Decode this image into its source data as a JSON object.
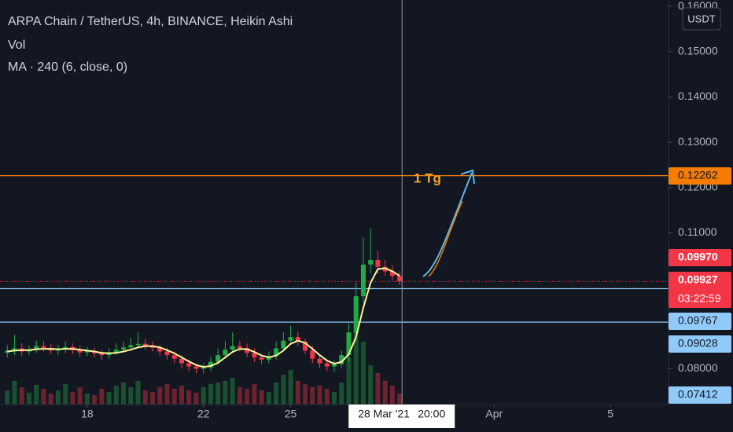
{
  "chart_data": {
    "type": "candlestick",
    "title": "ARPA Chain / TetherUS, 4h, BINANCE, Heikin Ashi",
    "volume_label": "Vol",
    "currency": "USDT",
    "annotation": "1 Tg",
    "x": [
      15.25,
      15.5,
      15.75,
      16,
      16.25,
      16.5,
      16.75,
      17,
      17.25,
      17.5,
      17.75,
      18,
      18.25,
      18.5,
      18.75,
      19,
      19.25,
      19.5,
      19.75,
      20,
      20.25,
      20.5,
      20.75,
      21,
      21.25,
      21.5,
      21.75,
      22,
      22.25,
      22.5,
      22.75,
      23,
      23.25,
      23.5,
      23.75,
      24,
      24.25,
      24.5,
      24.75,
      25,
      25.25,
      25.5,
      25.75,
      26,
      26.25,
      26.5,
      26.75,
      27,
      27.25,
      27.5,
      27.75,
      28,
      28.25,
      28.5,
      28.75
    ],
    "open": [
      0.0835,
      0.084,
      0.0845,
      0.0838,
      0.0842,
      0.085,
      0.0846,
      0.084,
      0.0843,
      0.0848,
      0.0841,
      0.0836,
      0.0839,
      0.0834,
      0.083,
      0.0836,
      0.0842,
      0.0847,
      0.0852,
      0.0855,
      0.0851,
      0.0846,
      0.0838,
      0.083,
      0.0822,
      0.0812,
      0.0805,
      0.08,
      0.0803,
      0.0815,
      0.083,
      0.0842,
      0.085,
      0.0846,
      0.0835,
      0.0825,
      0.082,
      0.0828,
      0.0845,
      0.0862,
      0.087,
      0.086,
      0.084,
      0.0822,
      0.0812,
      0.0805,
      0.081,
      0.083,
      0.088,
      0.096,
      0.103,
      0.104,
      0.1025,
      0.1015,
      0.1005
    ],
    "high": [
      0.0852,
      0.0875,
      0.0856,
      0.0851,
      0.0862,
      0.086,
      0.0855,
      0.0852,
      0.086,
      0.0856,
      0.085,
      0.0848,
      0.0846,
      0.0842,
      0.0845,
      0.0856,
      0.086,
      0.0868,
      0.088,
      0.0866,
      0.086,
      0.0852,
      0.0846,
      0.0838,
      0.083,
      0.082,
      0.0812,
      0.0812,
      0.0826,
      0.0845,
      0.0862,
      0.088,
      0.0862,
      0.0856,
      0.0845,
      0.0832,
      0.0838,
      0.086,
      0.088,
      0.0895,
      0.0882,
      0.0866,
      0.085,
      0.083,
      0.082,
      0.0818,
      0.084,
      0.09,
      0.099,
      0.109,
      0.111,
      0.106,
      0.104,
      0.1028,
      0.1015
    ],
    "low": [
      0.0825,
      0.083,
      0.0828,
      0.083,
      0.0835,
      0.0838,
      0.0832,
      0.083,
      0.0835,
      0.0832,
      0.0826,
      0.0828,
      0.0825,
      0.082,
      0.0822,
      0.083,
      0.0836,
      0.084,
      0.0845,
      0.0842,
      0.0838,
      0.0828,
      0.082,
      0.0812,
      0.08,
      0.0795,
      0.079,
      0.079,
      0.0795,
      0.0808,
      0.0822,
      0.0835,
      0.0838,
      0.0826,
      0.0815,
      0.081,
      0.0812,
      0.082,
      0.0838,
      0.0855,
      0.085,
      0.0832,
      0.0812,
      0.0802,
      0.0795,
      0.0792,
      0.08,
      0.0815,
      0.086,
      0.0945,
      0.101,
      0.101,
      0.1005,
      0.0995,
      0.0985
    ],
    "close": [
      0.084,
      0.0845,
      0.0838,
      0.0842,
      0.085,
      0.0846,
      0.084,
      0.0843,
      0.0848,
      0.0841,
      0.0836,
      0.0839,
      0.0834,
      0.083,
      0.0836,
      0.0842,
      0.0847,
      0.0852,
      0.0855,
      0.0851,
      0.0846,
      0.0838,
      0.083,
      0.0822,
      0.0812,
      0.0805,
      0.08,
      0.0803,
      0.0815,
      0.083,
      0.0842,
      0.085,
      0.0846,
      0.0835,
      0.0825,
      0.082,
      0.0828,
      0.0845,
      0.0862,
      0.087,
      0.086,
      0.084,
      0.0822,
      0.0812,
      0.0805,
      0.081,
      0.083,
      0.088,
      0.096,
      0.103,
      0.104,
      0.1025,
      0.1015,
      0.1005,
      0.0993
    ],
    "volume": [
      18,
      30,
      22,
      15,
      25,
      20,
      14,
      18,
      26,
      16,
      22,
      14,
      12,
      20,
      16,
      24,
      28,
      22,
      30,
      18,
      16,
      22,
      26,
      20,
      24,
      18,
      15,
      22,
      26,
      28,
      30,
      34,
      22,
      20,
      26,
      18,
      16,
      28,
      38,
      44,
      30,
      26,
      22,
      24,
      20,
      16,
      28,
      60,
      95,
      80,
      50,
      40,
      30,
      24,
      14
    ],
    "up_color": "#22ab45",
    "down_color": "#f23645",
    "ma": {
      "name": "MA · 240 (6, close, 0)",
      "color": "#fff59d",
      "values": [
        0.0838,
        0.084,
        0.0841,
        0.0841,
        0.0843,
        0.0844,
        0.0844,
        0.0843,
        0.0844,
        0.0844,
        0.0842,
        0.084,
        0.0838,
        0.0835,
        0.0834,
        0.0835,
        0.0838,
        0.0842,
        0.0847,
        0.085,
        0.085,
        0.0847,
        0.0841,
        0.0834,
        0.0825,
        0.0816,
        0.0808,
        0.0804,
        0.0806,
        0.0813,
        0.0825,
        0.0837,
        0.0844,
        0.0843,
        0.0837,
        0.0829,
        0.0825,
        0.0829,
        0.084,
        0.0855,
        0.0862,
        0.0857,
        0.0844,
        0.083,
        0.0818,
        0.0811,
        0.0815,
        0.0832,
        0.087,
        0.0935,
        0.099,
        0.102,
        0.1022,
        0.1015,
        0.1005
      ]
    },
    "xlim": [
      15,
      38
    ],
    "xticks": [
      18,
      22,
      25,
      {
        "value": 32,
        "label": "Apr"
      },
      {
        "value": 36,
        "label": "5"
      }
    ],
    "ylim": [
      0.0721,
      0.1614
    ],
    "yticks": [
      {
        "value": 0.16,
        "label": "0.16000"
      },
      {
        "value": 0.15,
        "label": "0.15000"
      },
      {
        "value": 0.14,
        "label": "0.14000"
      },
      {
        "value": 0.13,
        "label": "0.13000"
      },
      {
        "value": 0.12,
        "label": "0.12000"
      },
      {
        "value": 0.11,
        "label": "0.11000"
      },
      {
        "value": 0.1,
        "label": "0.10000"
      },
      {
        "value": 0.09,
        "label": "0.09000"
      },
      {
        "value": 0.08,
        "label": "0.08000"
      }
    ],
    "grid": false,
    "price_lines": [
      {
        "value": 0.12262,
        "color": "#f57c00",
        "text_color": "#131722",
        "show_line": true
      },
      {
        "value": 0.09767,
        "color": "#90caf9",
        "text_color": "#131722",
        "show_line": true
      },
      {
        "value": 0.09028,
        "color": "#90caf9",
        "text_color": "#131722",
        "show_line": true
      },
      {
        "value": 0.07412,
        "color": "#90caf9",
        "text_color": "#131722",
        "show_line": false
      }
    ],
    "last_price": {
      "value": 0.09927,
      "countdown": "03:22:59",
      "color": "#f23645"
    },
    "alt_price": {
      "value": 0.0997,
      "label": "0.09970",
      "color": "#f23645"
    },
    "crosshair": {
      "x": 28.833,
      "date_label": "28 Mar '21",
      "time_label": "20:00"
    }
  }
}
